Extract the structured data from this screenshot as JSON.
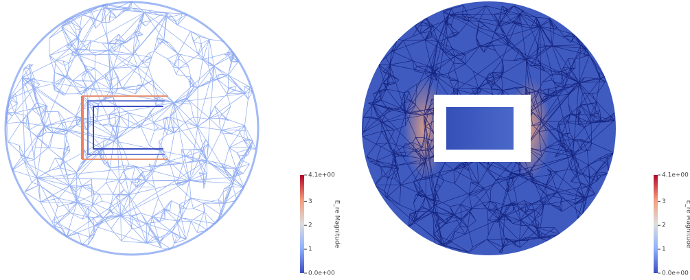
{
  "views": [
    {
      "colorbar": {
        "title": "E_re Magnitude",
        "ticks": [
          {
            "value": 4.1,
            "label": "4.1e+00"
          },
          {
            "value": 3,
            "label": "3"
          },
          {
            "value": 2,
            "label": "2"
          },
          {
            "value": 1,
            "label": "1"
          },
          {
            "value": 0,
            "label": "0.0e+00"
          }
        ]
      }
    },
    {
      "colorbar": {
        "title": "E_re Magnitude",
        "ticks": [
          {
            "value": 4.1,
            "label": "4.1e+00"
          },
          {
            "value": 3,
            "label": "3"
          },
          {
            "value": 2,
            "label": "2"
          },
          {
            "value": 1,
            "label": "1"
          },
          {
            "value": 0,
            "label": "0.0e+00"
          }
        ]
      }
    }
  ]
}
